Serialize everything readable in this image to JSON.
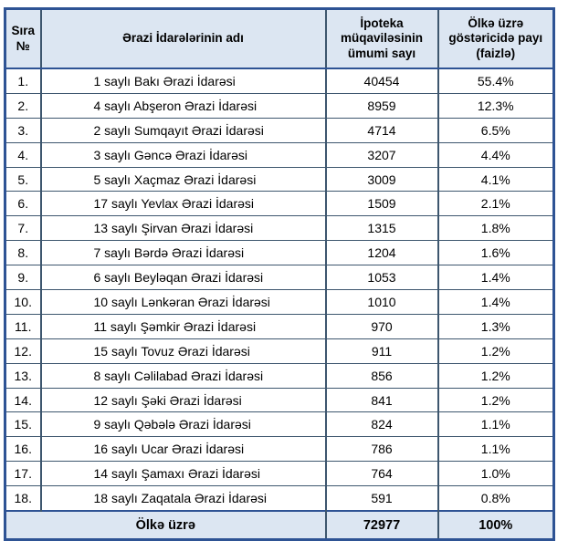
{
  "page": {
    "background_color": "#ffffff"
  },
  "table": {
    "colors": {
      "outer_border": "#2e5394",
      "inner_border": "#3d566e",
      "header_background": "#dce6f2",
      "total_row_background": "#dce6f2"
    },
    "headers": {
      "seq": "Sıra\n№",
      "name": "Ərazi İdarələrinin adı",
      "count": "İpoteka\nmüqaviləsinin\nümumi sayı",
      "share": "Ölkə üzrə\ngöstəricidə payı\n(faizlə)"
    },
    "rows": [
      {
        "no": "1.",
        "name": "1 saylı Bakı Ərazi İdarəsi",
        "count": "40454",
        "share": "55.4%"
      },
      {
        "no": "2.",
        "name": "4 saylı Abşeron Ərazi İdarəsi",
        "count": "8959",
        "share": "12.3%"
      },
      {
        "no": "3.",
        "name": "2 saylı Sumqayıt Ərazi İdarəsi",
        "count": "4714",
        "share": "6.5%"
      },
      {
        "no": "4.",
        "name": "3 saylı Gəncə Ərazi İdarəsi",
        "count": "3207",
        "share": "4.4%"
      },
      {
        "no": "5.",
        "name": "5 saylı Xaçmaz Ərazi İdarəsi",
        "count": "3009",
        "share": "4.1%"
      },
      {
        "no": "6.",
        "name": "17 saylı Yevlax Ərazi İdarəsi",
        "count": "1509",
        "share": "2.1%"
      },
      {
        "no": "7.",
        "name": "13 saylı Şirvan Ərazi İdarəsi",
        "count": "1315",
        "share": "1.8%"
      },
      {
        "no": "8.",
        "name": "7 saylı Bərdə Ərazi İdarəsi",
        "count": "1204",
        "share": "1.6%"
      },
      {
        "no": "9.",
        "name": "6 saylı Beyləqan Ərazi İdarəsi",
        "count": "1053",
        "share": "1.4%"
      },
      {
        "no": "10.",
        "name": "10 saylı Lənkəran Ərazi İdarəsi",
        "count": "1010",
        "share": "1.4%"
      },
      {
        "no": "11.",
        "name": "11 saylı Şəmkir Ərazi İdarəsi",
        "count": "970",
        "share": "1.3%"
      },
      {
        "no": "12.",
        "name": "15 saylı Tovuz Ərazi İdarəsi",
        "count": "911",
        "share": "1.2%"
      },
      {
        "no": "13.",
        "name": "8 saylı Cəlilabad Ərazi İdarəsi",
        "count": "856",
        "share": "1.2%"
      },
      {
        "no": "14.",
        "name": "12 saylı Şəki Ərazi İdarəsi",
        "count": "841",
        "share": "1.2%"
      },
      {
        "no": "15.",
        "name": "9 saylı Qəbələ Ərazi İdarəsi",
        "count": "824",
        "share": "1.1%"
      },
      {
        "no": "16.",
        "name": "16 saylı Ucar Ərazi İdarəsi",
        "count": "786",
        "share": "1.1%"
      },
      {
        "no": "17.",
        "name": "14 saylı Şamaxı Ərazi İdarəsi",
        "count": "764",
        "share": "1.0%"
      },
      {
        "no": "18.",
        "name": "18 saylı Zaqatala Ərazi İdarəsi",
        "count": "591",
        "share": "0.8%"
      }
    ],
    "total": {
      "label": "Ölkə üzrə",
      "count": "72977",
      "share": "100%"
    }
  }
}
